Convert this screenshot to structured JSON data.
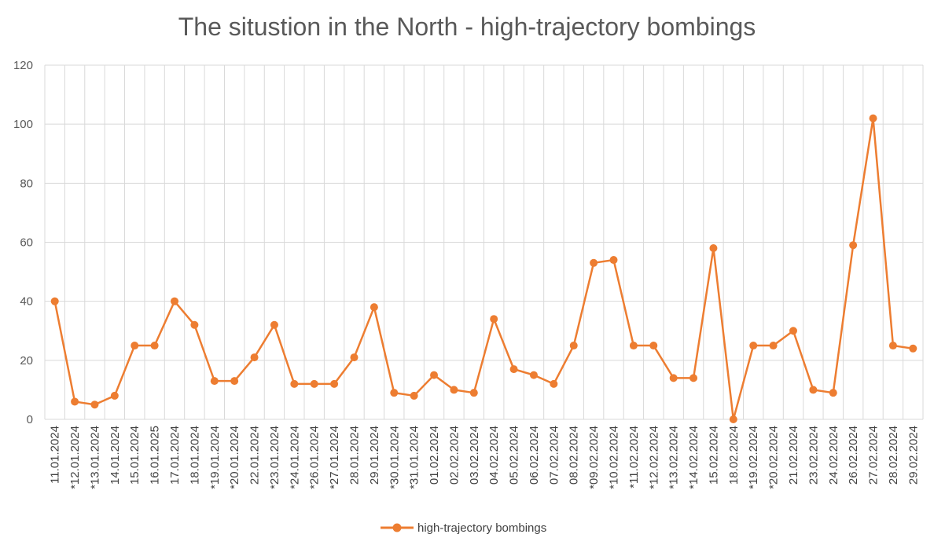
{
  "chart_data": {
    "type": "line",
    "title": "The situstion in the North - high-trajectory bombings",
    "xlabel": "",
    "ylabel": "",
    "ylim": [
      0,
      120
    ],
    "yticks": [
      0,
      20,
      40,
      60,
      80,
      100,
      120
    ],
    "grid": true,
    "legend_position": "bottom",
    "categories": [
      "11.01.2024",
      "*12.01.2024",
      "*13.01.2024",
      "14.01.2024",
      "15.01.2024",
      "16.01.2025",
      "17.01.2024",
      "18.01.2024",
      "*19.01.2024",
      "*20.01.2024",
      "22.01.2024",
      "*23.01.2024",
      "*24.01.2024",
      "*26.01.2024",
      "*27.01.2024",
      "28.01.2024",
      "29.01.2024",
      "*30.01.2024",
      "*31.01.2024",
      "01.02.2024",
      "02.02.2024",
      "03.02.2024",
      "04.02.2024",
      "05.02.2024",
      "06.02.2024",
      "07.02.2024",
      "08.02.2024",
      "*09.02.2024",
      "*10.02.2024",
      "*11.02.2024",
      "*12.02.2024",
      "*13.02.2024",
      "*14.02.2024",
      "15.02.2024",
      "18.02.2024",
      "*19.02.2024",
      "*20.02.2024",
      "21.02.2024",
      "23.02.2024",
      "24.02.2024",
      "26.02.2024",
      "27.02.2024",
      "28.02.2024",
      "29.02.2024"
    ],
    "series": [
      {
        "name": "high-trajectory bombings",
        "color": "#ED7D31",
        "values": [
          40,
          6,
          5,
          8,
          25,
          25,
          40,
          32,
          13,
          13,
          21,
          32,
          12,
          12,
          12,
          21,
          38,
          9,
          8,
          15,
          10,
          9,
          34,
          17,
          15,
          12,
          25,
          53,
          54,
          25,
          25,
          14,
          14,
          58,
          0,
          25,
          25,
          30,
          10,
          9,
          59,
          102,
          25,
          24
        ]
      }
    ]
  }
}
